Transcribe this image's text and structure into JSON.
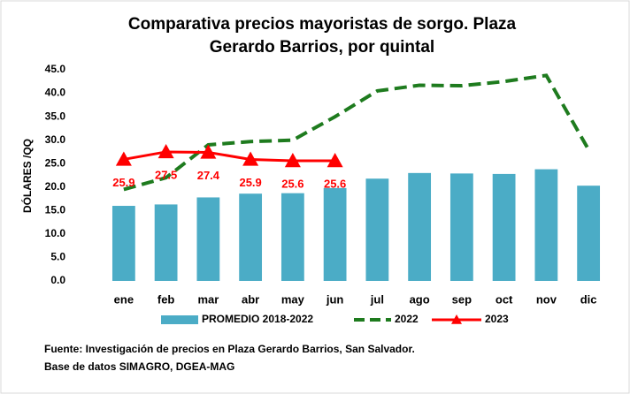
{
  "chart_data": {
    "type": "bar_line",
    "title": [
      "Comparativa precios mayoristas de sorgo. Plaza",
      "Gerardo Barrios, por quintal"
    ],
    "ylabel": "DÓLARES /QQ",
    "categories": [
      "ene",
      "feb",
      "mar",
      "abr",
      "may",
      "jun",
      "jul",
      "ago",
      "sep",
      "oct",
      "nov",
      "dic"
    ],
    "series": [
      {
        "name": "PROMEDIO 2018-2022",
        "kind": "bar",
        "color": "#4bacc6",
        "values": [
          16.0,
          16.3,
          17.8,
          18.6,
          18.7,
          19.8,
          21.8,
          23.0,
          22.9,
          22.8,
          23.8,
          20.3
        ]
      },
      {
        "name": "2022",
        "kind": "dashed-line",
        "color": "#1e7b1e",
        "values": [
          19.5,
          22.0,
          29.0,
          29.7,
          30.0,
          35.0,
          40.5,
          41.7,
          41.6,
          42.5,
          43.8,
          28.0
        ]
      },
      {
        "name": "2023",
        "kind": "line-triangle",
        "color": "#ff0000",
        "values": [
          25.9,
          27.5,
          27.4,
          25.9,
          25.6,
          25.6,
          null,
          null,
          null,
          null,
          null,
          null
        ],
        "data_labels": true
      }
    ],
    "ylim": [
      0,
      45
    ],
    "yticks": [
      {
        "value": 0,
        "label": "0.0"
      },
      {
        "value": 5,
        "label": "5.0"
      },
      {
        "value": 10,
        "label": "10.0"
      },
      {
        "value": 15,
        "label": "15.0"
      },
      {
        "value": 20,
        "label": "20.0"
      },
      {
        "value": 25,
        "label": "25.0"
      },
      {
        "value": 30,
        "label": "30.0"
      },
      {
        "value": 35,
        "label": "35.0"
      },
      {
        "value": 40,
        "label": "40.0"
      },
      {
        "value": 45,
        "label": "45.0"
      }
    ],
    "grid": false,
    "legend": "bottom",
    "notes": [
      "Fuente: Investigación de precios en Plaza Gerardo Barrios, San Salvador.",
      "Base de datos SIMAGRO, DGEA-MAG"
    ]
  }
}
